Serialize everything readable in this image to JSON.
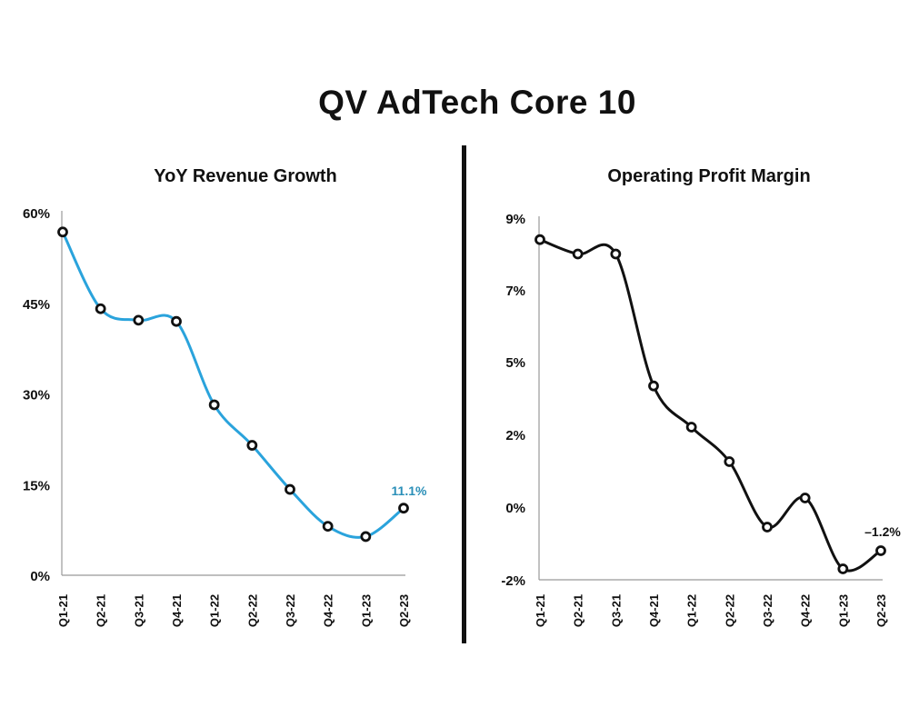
{
  "title": "QV AdTech Core 10",
  "chart_data": [
    {
      "type": "line",
      "title": "YoY Revenue Growth",
      "color": "#2aa3dc",
      "categories": [
        "Q1-21",
        "Q2-21",
        "Q3-21",
        "Q4-21",
        "Q1-22",
        "Q2-22",
        "Q3-22",
        "Q4-22",
        "Q1-23",
        "Q2-23"
      ],
      "values": [
        56.8,
        44.1,
        42.2,
        42.0,
        28.2,
        21.5,
        14.2,
        8.1,
        6.4,
        11.1
      ],
      "ylim": [
        0,
        60
      ],
      "yticks": [
        0,
        15,
        30,
        45,
        60
      ],
      "ytick_labels": [
        "0%",
        "15%",
        "30%",
        "45%",
        "60%"
      ],
      "annotation": "11.1%",
      "annotation_color": "#2a8fb8"
    },
    {
      "type": "line",
      "title": "Operating Profit Margin",
      "color": "#111111",
      "categories": [
        "Q1-21",
        "Q2-21",
        "Q3-21",
        "Q4-21",
        "Q1-22",
        "Q2-22",
        "Q3-22",
        "Q4-22",
        "Q1-23",
        "Q2-23"
      ],
      "values": [
        8.4,
        8.0,
        8.0,
        4.0,
        2.3,
        1.25,
        -0.55,
        0.25,
        -1.7,
        -1.2
      ],
      "ylim": [
        -2,
        9
      ],
      "yticks": [
        -2,
        0,
        2,
        5,
        7,
        9
      ],
      "ytick_labels": [
        "-2%",
        "0%",
        "2%",
        "5%",
        "7%",
        "9%"
      ],
      "annotation": "–1.2%",
      "annotation_color": "#111111"
    }
  ]
}
